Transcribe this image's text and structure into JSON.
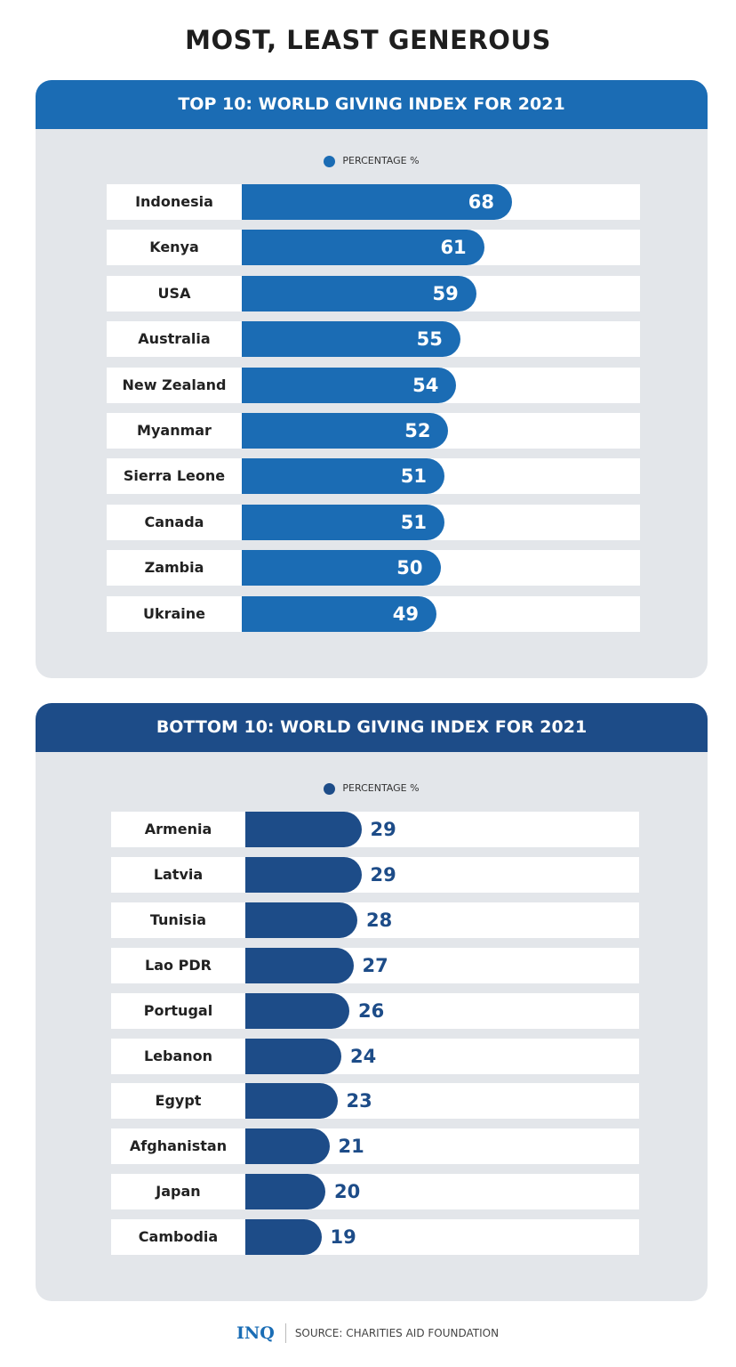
{
  "title": "MOST, LEAST GENEROUS",
  "chart_data": [
    {
      "type": "bar",
      "orientation": "horizontal",
      "title": "TOP 10: WORLD GIVING INDEX FOR 2021",
      "legend": "PERCENTAGE %",
      "color": "#1b6cb4",
      "categories": [
        "Indonesia",
        "Kenya",
        "USA",
        "Australia",
        "New Zealand",
        "Myanmar",
        "Sierra Leone",
        "Canada",
        "Zambia",
        "Ukraine"
      ],
      "values": [
        68,
        61,
        59,
        55,
        54,
        52,
        51,
        51,
        50,
        49
      ]
    },
    {
      "type": "bar",
      "orientation": "horizontal",
      "title": "BOTTOM 10: WORLD GIVING INDEX FOR 2021",
      "legend": "PERCENTAGE %",
      "color": "#1d4c88",
      "categories": [
        "Armenia",
        "Latvia",
        "Tunisia",
        "Lao PDR",
        "Portugal",
        "Lebanon",
        "Egypt",
        "Afghanistan",
        "Japan",
        "Cambodia"
      ],
      "values": [
        29,
        29,
        28,
        27,
        26,
        24,
        23,
        21,
        20,
        19
      ]
    }
  ],
  "footer": {
    "logo": "INQ",
    "source": "SOURCE: CHARITIES AID FOUNDATION"
  }
}
